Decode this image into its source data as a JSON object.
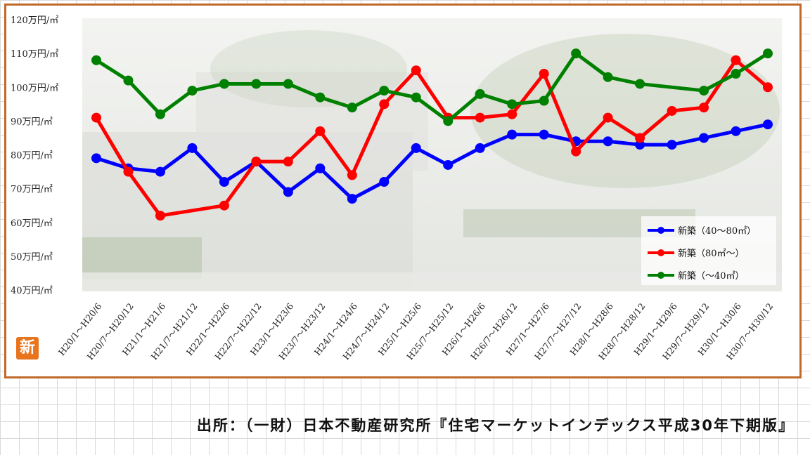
{
  "badge": {
    "text": "新"
  },
  "source": {
    "text": "出所：（一財）日本不動産研究所『住宅マーケットインデックス平成30年下期版』"
  },
  "chart_data": {
    "type": "line",
    "categories": [
      "H20/1～H20/6",
      "H20/7～H20/12",
      "H21/1～H21/6",
      "H21/7～H21/12",
      "H22/1～H22/6",
      "H22/7～H22/12",
      "H23/1～H23/6",
      "H23/7～H23/12",
      "H24/1～H24/6",
      "H24/7～H24/12",
      "H25/1～H25/6",
      "H25/7～H25/12",
      "H26/1～H26/6",
      "H26/7～H26/12",
      "H27/1～H27/6",
      "H27/7～H27/12",
      "H28/1～H28/6",
      "H28/7～H28/12",
      "H29/1～H29/6",
      "H29/7～H29/12",
      "H30/1～H30/6",
      "H30/7～H30/12"
    ],
    "yticks": [
      40,
      50,
      60,
      70,
      80,
      90,
      100,
      110,
      120
    ],
    "ytick_suffix": "万円/㎡",
    "ylim": [
      40,
      120
    ],
    "legend_position": "bottom-right",
    "series": [
      {
        "name": "新築（40～80㎡）",
        "color": "#0000ff",
        "values": [
          79,
          76,
          75,
          82,
          72,
          78,
          69,
          76,
          67,
          72,
          82,
          77,
          82,
          86,
          86,
          84,
          84,
          83,
          83,
          85,
          87,
          89
        ]
      },
      {
        "name": "新築（80㎡～）",
        "color": "#ff0000",
        "values": [
          91,
          75,
          62,
          null,
          65,
          78,
          78,
          87,
          74,
          95,
          105,
          91,
          91,
          92,
          104,
          81,
          91,
          85,
          93,
          94,
          108,
          100
        ]
      },
      {
        "name": "新築（～40㎡）",
        "color": "#008000",
        "values": [
          108,
          102,
          92,
          99,
          101,
          101,
          101,
          97,
          94,
          99,
          97,
          90,
          98,
          95,
          96,
          110,
          103,
          101,
          null,
          99,
          104,
          110
        ]
      }
    ]
  }
}
